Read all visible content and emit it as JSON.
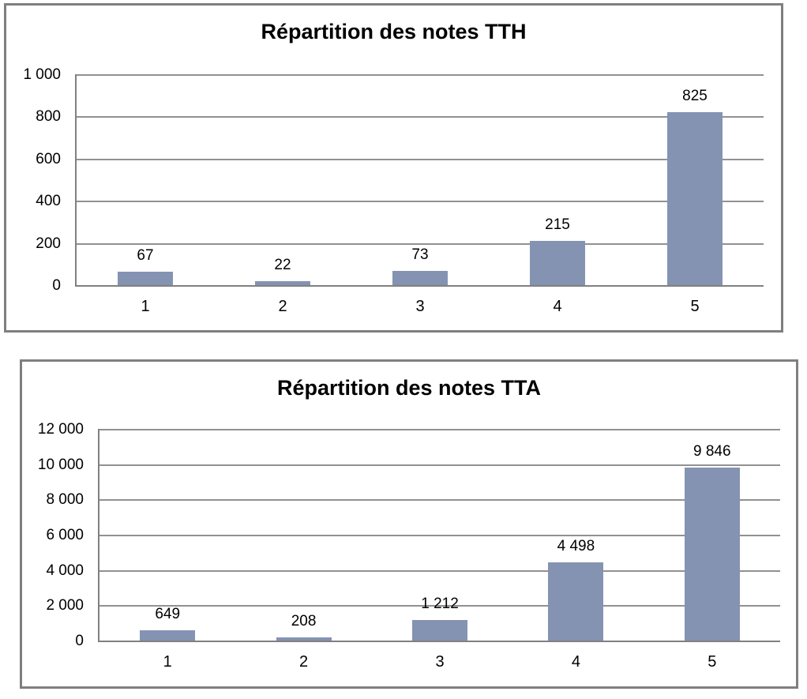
{
  "chart_data": [
    {
      "type": "bar",
      "title": "Répartition des notes TTH",
      "categories": [
        "1",
        "2",
        "3",
        "4",
        "5"
      ],
      "values": [
        67,
        22,
        73,
        215,
        825
      ],
      "value_labels": [
        "67",
        "22",
        "73",
        "215",
        "825"
      ],
      "xlabel": "",
      "ylabel": "",
      "ylim": [
        0,
        1000
      ],
      "ytick_interval": 200,
      "ytick_labels": [
        "0",
        "200",
        "400",
        "600",
        "800",
        "1 000"
      ],
      "grid": true,
      "legend": false,
      "bar_color": "#8593B2"
    },
    {
      "type": "bar",
      "title": "Répartition des notes TTA",
      "categories": [
        "1",
        "2",
        "3",
        "4",
        "5"
      ],
      "values": [
        649,
        208,
        1212,
        4498,
        9846
      ],
      "value_labels": [
        "649",
        "208",
        "1 212",
        "4 498",
        "9 846"
      ],
      "xlabel": "",
      "ylabel": "",
      "ylim": [
        0,
        12000
      ],
      "ytick_interval": 2000,
      "ytick_labels": [
        "0",
        "2 000",
        "4 000",
        "6 000",
        "8 000",
        "10 000",
        "12 000"
      ],
      "grid": true,
      "legend": false,
      "bar_color": "#8593B2"
    }
  ],
  "colors": {
    "bar": "#8593B2",
    "gridline": "#919191",
    "axis": "#808080",
    "frame_border": "#7F7F7F",
    "text": "#000000",
    "background": "#FFFFFF"
  }
}
